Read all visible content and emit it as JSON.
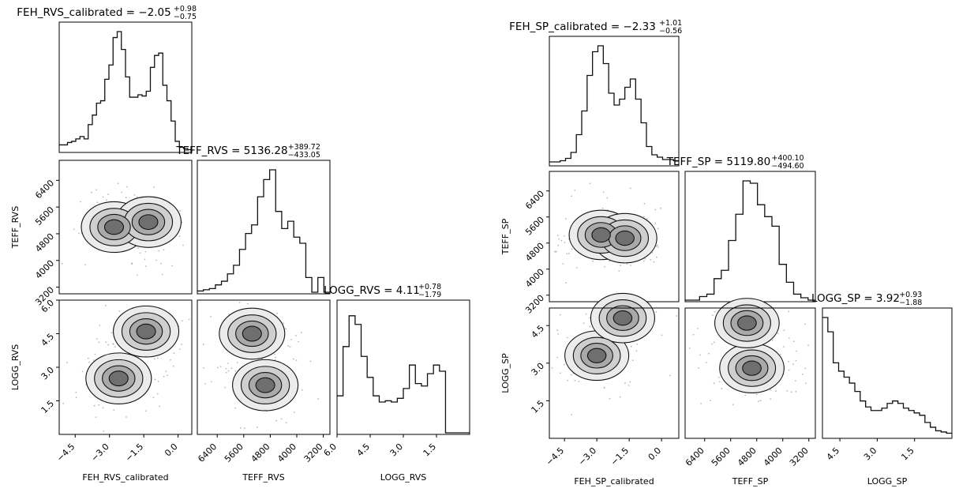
{
  "chart_data": [
    {
      "type": "corner",
      "params": [
        "FEH_RVS_calibrated",
        "TEFF_RVS",
        "LOGG_RVS"
      ],
      "titles": [
        {
          "name": "FEH_RVS_calibrated",
          "median": "−2.05",
          "plus": "+0.98",
          "minus": "−0.75"
        },
        {
          "name": "TEFF_RVS",
          "median": "5136.28",
          "plus": "+389.72",
          "minus": "−433.05"
        },
        {
          "name": "LOGG_RVS",
          "median": "4.11",
          "plus": "+0.78",
          "minus": "−1.79"
        }
      ],
      "axis_labels": {
        "x": [
          "FEH_RVS_calibrated",
          "TEFF_RVS",
          "LOGG_RVS"
        ],
        "y": [
          "TEFF_RVS",
          "LOGG_RVS"
        ]
      },
      "ranges": [
        [
          -5.2,
          0.6
        ],
        [
          7000,
          3000
        ],
        [
          6.0,
          0.0
        ]
      ],
      "ticks": [
        {
          "values": [
            -4.5,
            -3.0,
            -1.5,
            0.0
          ],
          "labels": [
            "−4.5",
            "−3.0",
            "−1.5",
            "0.0"
          ]
        },
        {
          "values": [
            6400,
            5600,
            4800,
            4000,
            3200
          ],
          "labels": [
            "6400",
            "5600",
            "4800",
            "4000",
            "3200"
          ]
        },
        {
          "values": [
            6.0,
            4.5,
            3.0,
            1.5
          ],
          "labels": [
            "6.0",
            "4.5",
            "3.0",
            "1.5"
          ]
        }
      ],
      "histograms": [
        [
          0.05,
          0.05,
          0.07,
          0.08,
          0.1,
          0.12,
          0.1,
          0.22,
          0.3,
          0.4,
          0.42,
          0.6,
          0.72,
          0.95,
          1.0,
          0.85,
          0.62,
          0.45,
          0.45,
          0.47,
          0.46,
          0.5,
          0.7,
          0.8,
          0.82,
          0.55,
          0.42,
          0.25,
          0.08,
          0.03,
          0.02,
          0.01
        ],
        [
          0.01,
          0.02,
          0.03,
          0.06,
          0.09,
          0.15,
          0.22,
          0.35,
          0.48,
          0.55,
          0.78,
          0.92,
          1.0,
          0.66,
          0.52,
          0.58,
          0.45,
          0.4,
          0.12,
          0.0,
          0.12,
          0.0
        ],
        [
          0.3,
          0.7,
          0.95,
          0.88,
          0.62,
          0.45,
          0.3,
          0.25,
          0.26,
          0.25,
          0.28,
          0.36,
          0.55,
          0.4,
          0.38,
          0.48,
          0.55,
          0.5,
          0.0,
          0.0,
          0.0,
          0.0
        ]
      ],
      "density_peaks": [
        {
          "row": 1,
          "col": 0,
          "peaks": [
            {
              "x": -2.8,
              "y": 5000
            },
            {
              "x": -1.3,
              "y": 5150
            }
          ]
        },
        {
          "row": 2,
          "col": 0,
          "peaks": [
            {
              "x": -2.6,
              "y": 2.5
            },
            {
              "x": -1.4,
              "y": 4.6
            }
          ]
        },
        {
          "row": 2,
          "col": 1,
          "peaks": [
            {
              "x": 4950,
              "y": 2.2
            },
            {
              "x": 5350,
              "y": 4.5
            }
          ]
        }
      ]
    },
    {
      "type": "corner",
      "params": [
        "FEH_SP_calibrated",
        "TEFF_SP",
        "LOGG_SP"
      ],
      "titles": [
        {
          "name": "FEH_SP_calibrated",
          "median": "−2.33",
          "plus": "+1.01",
          "minus": "−0.56"
        },
        {
          "name": "TEFF_SP",
          "median": "5119.80",
          "plus": "+400.10",
          "minus": "−494.60"
        },
        {
          "name": "LOGG_SP",
          "median": "3.92",
          "plus": "+0.93",
          "minus": "−1.88"
        }
      ],
      "axis_labels": {
        "x": [
          "FEH_SP_calibrated",
          "TEFF_SP",
          "LOGG_SP"
        ],
        "y": [
          "TEFF_SP",
          "LOGG_SP"
        ]
      },
      "ranges": [
        [
          -5.2,
          0.8
        ],
        [
          7000,
          3000
        ],
        [
          5.2,
          0.0
        ]
      ],
      "ticks": [
        {
          "values": [
            -4.5,
            -3.0,
            -1.5,
            0.0
          ],
          "labels": [
            "−4.5",
            "−3.0",
            "−1.5",
            "0.0"
          ]
        },
        {
          "values": [
            6400,
            5600,
            4800,
            4000,
            3200
          ],
          "labels": [
            "6400",
            "5600",
            "4800",
            "4000",
            "3200"
          ]
        },
        {
          "values": [
            4.5,
            3.0,
            1.5
          ],
          "labels": [
            "4.5",
            "3.0",
            "1.5"
          ]
        }
      ],
      "histograms": [
        [
          0.02,
          0.02,
          0.03,
          0.05,
          0.1,
          0.25,
          0.45,
          0.75,
          0.95,
          1.0,
          0.85,
          0.6,
          0.5,
          0.55,
          0.65,
          0.72,
          0.55,
          0.35,
          0.15,
          0.08,
          0.06,
          0.04,
          0.04,
          0.03
        ],
        [
          0.0,
          0.0,
          0.03,
          0.05,
          0.18,
          0.25,
          0.5,
          0.72,
          1.0,
          0.98,
          0.8,
          0.7,
          0.62,
          0.3,
          0.15,
          0.05,
          0.02,
          0.0
        ],
        [
          1.0,
          0.88,
          0.62,
          0.55,
          0.5,
          0.45,
          0.38,
          0.3,
          0.25,
          0.22,
          0.22,
          0.24,
          0.28,
          0.3,
          0.28,
          0.24,
          0.22,
          0.2,
          0.18,
          0.12,
          0.08,
          0.05,
          0.04,
          0.03
        ]
      ],
      "density_peaks": [
        {
          "row": 1,
          "col": 0,
          "peaks": [
            {
              "x": -2.8,
              "y": 5050
            },
            {
              "x": -1.7,
              "y": 4950
            }
          ]
        },
        {
          "row": 2,
          "col": 0,
          "peaks": [
            {
              "x": -3.0,
              "y": 3.3
            },
            {
              "x": -1.8,
              "y": 4.8
            }
          ]
        },
        {
          "row": 2,
          "col": 1,
          "peaks": [
            {
              "x": 4950,
              "y": 2.8
            },
            {
              "x": 5100,
              "y": 4.6
            }
          ]
        }
      ]
    }
  ]
}
